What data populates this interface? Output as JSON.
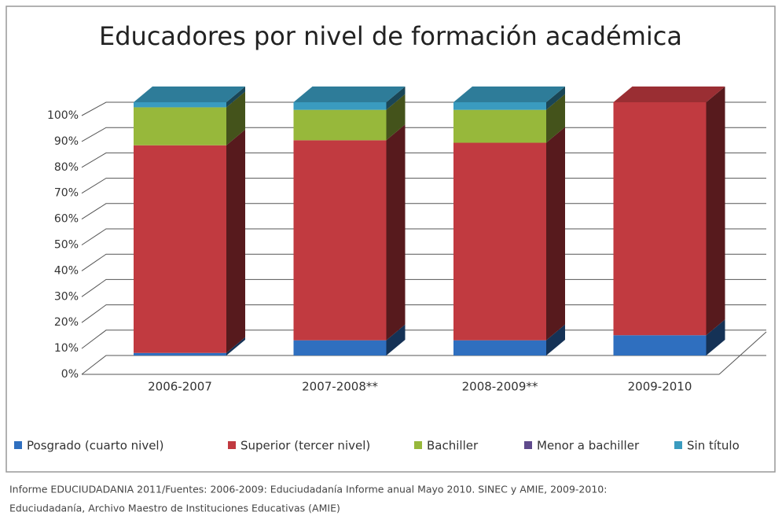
{
  "chart_data": {
    "type": "bar3d_stacked",
    "title": "Educadores por nivel de formación académica",
    "categories": [
      "2006-2007",
      "2007-2008**",
      "2008-2009**",
      "2009-2010"
    ],
    "series": [
      {
        "name": "Posgrado (cuarto nivel)",
        "color": "#2f6fbf",
        "values": [
          1,
          6,
          6,
          8
        ]
      },
      {
        "name": "Superior (tercer nivel)",
        "color": "#c13a40",
        "values": [
          82,
          79,
          78,
          92
        ]
      },
      {
        "name": "Bachiller",
        "color": "#97b83b",
        "values": [
          15,
          12,
          13,
          0
        ]
      },
      {
        "name": "Menor a bachiller",
        "color": "#5f4a8c",
        "values": [
          0,
          0,
          0,
          0
        ]
      },
      {
        "name": "Sin título",
        "color": "#3a9bbf",
        "values": [
          2,
          3,
          3,
          0
        ]
      }
    ],
    "ylim": [
      0,
      100
    ],
    "yticks": [
      {
        "value": 0,
        "label": "0%"
      },
      {
        "value": 10,
        "label": "10%"
      },
      {
        "value": 20,
        "label": "20%"
      },
      {
        "value": 30,
        "label": "30%"
      },
      {
        "value": 40,
        "label": "40%"
      },
      {
        "value": 50,
        "label": "50%"
      },
      {
        "value": 60,
        "label": "60%"
      },
      {
        "value": 70,
        "label": "70%"
      },
      {
        "value": 80,
        "label": "80%"
      },
      {
        "value": 90,
        "label": "90%"
      },
      {
        "value": 100,
        "label": "100%"
      }
    ],
    "grid": true,
    "source": [
      "Informe EDUCIUDADANIA 2011/Fuentes: 2006-2009: Educiudadanía Informe anual Mayo 2010. SINEC y AMIE, 2009-2010:",
      "Educiudadanía, Archivo Maestro de Instituciones Educativas (AMIE)"
    ]
  }
}
